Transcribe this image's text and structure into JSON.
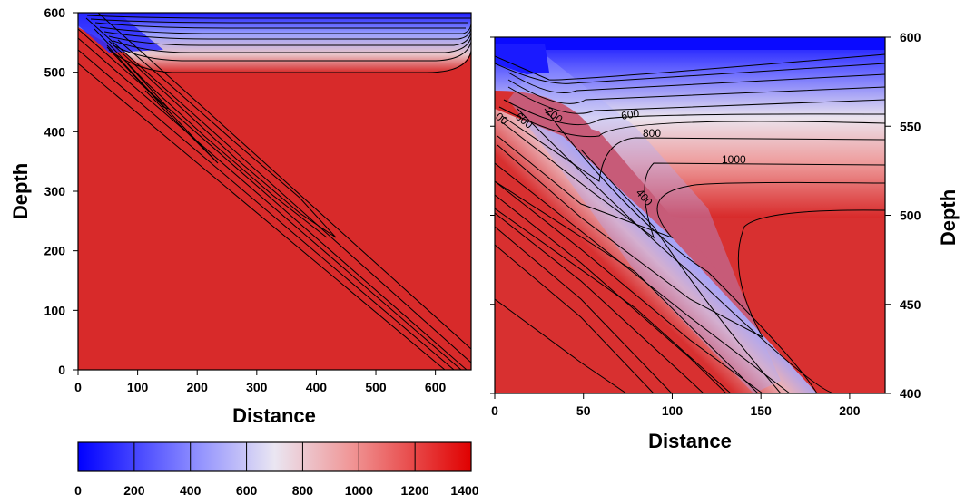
{
  "chart_data": [
    {
      "type": "heatmap",
      "title": "",
      "xlabel": "Distance",
      "ylabel": "Depth",
      "xlim": [
        0,
        660
      ],
      "ylim": [
        0,
        600
      ],
      "xticks": [
        "0",
        "100",
        "200",
        "300",
        "400",
        "500",
        "600"
      ],
      "yticks": [
        "0",
        "100",
        "200",
        "300",
        "400",
        "500",
        "600"
      ],
      "y_axis_side": "left",
      "contour_interval": 100,
      "contour_labels": []
    },
    {
      "type": "heatmap",
      "title": "",
      "xlabel": "Distance",
      "ylabel": "Depth",
      "xlim": [
        0,
        220
      ],
      "ylim": [
        400,
        600
      ],
      "xticks": [
        "0",
        "50",
        "100",
        "150",
        "200"
      ],
      "yticks": [
        "400",
        "450",
        "500",
        "550",
        "600"
      ],
      "y_axis_side": "right",
      "contour_interval": 100,
      "contour_labels": [
        "200",
        "400",
        "600",
        "800",
        "1000",
        "600",
        "00"
      ]
    }
  ],
  "colorbar": {
    "range": [
      0,
      1400
    ],
    "ticks": [
      "0",
      "200",
      "400",
      "600",
      "800",
      "1000",
      "1200",
      "1400"
    ],
    "colors": [
      "#0000ff",
      "#ffffff",
      "#e00000"
    ]
  }
}
